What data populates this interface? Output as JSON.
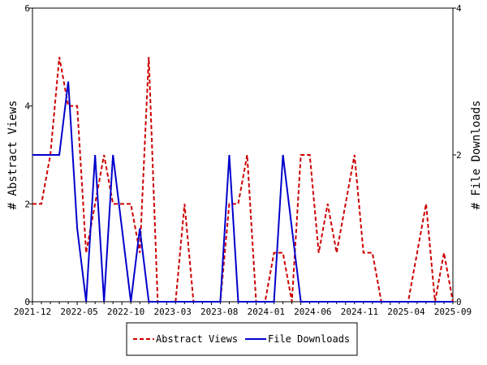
{
  "chart_data": {
    "type": "line",
    "title": "",
    "ylabel_left": "# Abstract Views",
    "ylabel_right": "# File Downloads",
    "ylim_left": [
      0,
      6
    ],
    "ylim_right": [
      0,
      4
    ],
    "yticks_left": [
      "0",
      "2",
      "4",
      "6"
    ],
    "yticks_right": [
      "0",
      "2",
      "4"
    ],
    "xtick_labels": [
      "2021-12",
      "2022-05",
      "2022-10",
      "2023-03",
      "2023-08",
      "2024-01",
      "2024-06",
      "2024-11",
      "2025-04",
      "2025-09"
    ],
    "legend_placement": "bottom-center",
    "series": [
      {
        "name": "Abstract Views",
        "axis": "left",
        "color": "#cc0000",
        "style": "dashed",
        "values": [
          2,
          2,
          3,
          5,
          4,
          4,
          1,
          2,
          3,
          2,
          2,
          2,
          1,
          5,
          0,
          0,
          0,
          2,
          0,
          0,
          0,
          0,
          2,
          2,
          3,
          0,
          0,
          1,
          1,
          0,
          3,
          3,
          1,
          2,
          1,
          2,
          3,
          1,
          1,
          0,
          0,
          0,
          0,
          1,
          2,
          0,
          1,
          0
        ]
      },
      {
        "name": "File Downloads",
        "axis": "right",
        "color": "#0000cc",
        "style": "solid",
        "values": [
          2,
          2,
          2,
          2,
          3,
          1,
          0,
          2,
          0,
          2,
          1,
          0,
          1,
          0,
          0,
          0,
          0,
          0,
          0,
          0,
          0,
          0,
          2,
          0,
          0,
          0,
          0,
          0,
          2,
          1,
          0,
          0,
          0,
          0,
          0,
          0,
          0,
          0,
          0,
          0,
          0,
          0,
          0,
          0,
          0,
          0,
          0,
          0
        ]
      }
    ]
  }
}
